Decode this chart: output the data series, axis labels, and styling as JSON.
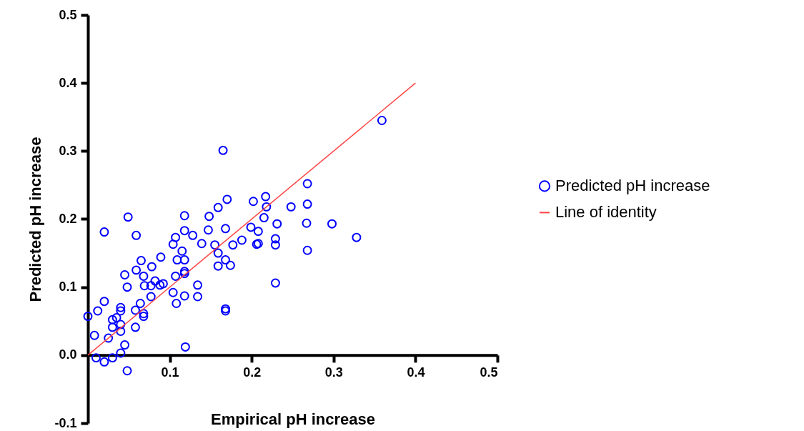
{
  "chart_data": {
    "type": "scatter",
    "xlabel": "Empirical pH increase",
    "ylabel": "Predicted pH  increase",
    "xlim": [
      0,
      0.5
    ],
    "xticks": [
      0.1,
      0.2,
      0.3,
      0.4,
      0.5
    ],
    "ylim": [
      -0.1,
      0.5
    ],
    "yticks": [
      -0.1,
      {
        "value": 0,
        "label": "0.0"
      },
      0.1,
      0.2,
      0.3,
      0.4,
      0.5
    ],
    "grid": false,
    "legend": "right",
    "marker": "circle",
    "series": [
      {
        "name": "Predicted pH increase",
        "type": "scatter",
        "color": "#0000ff",
        "x": [
          0,
          0.008,
          0.01,
          0.02,
          0.012,
          0.02,
          0.02,
          0.03,
          0.025,
          0.03,
          0.03,
          0.035,
          0.04,
          0.04,
          0.04,
          0.04,
          0.04,
          0.045,
          0.045,
          0.048,
          0.048,
          0.049,
          0.058,
          0.058,
          0.059,
          0.059,
          0.064,
          0.065,
          0.068,
          0.068,
          0.068,
          0.069,
          0.077,
          0.077,
          0.078,
          0.082,
          0.088,
          0.089,
          0.092,
          0.104,
          0.104,
          0.107,
          0.107,
          0.108,
          0.109,
          0.115,
          0.118,
          0.118,
          0.118,
          0.118,
          0.118,
          0.119,
          0.118,
          0.128,
          0.134,
          0.134,
          0.139,
          0.147,
          0.148,
          0.155,
          0.159,
          0.159,
          0.165,
          0.159,
          0.168,
          0.168,
          0.168,
          0.168,
          0.17,
          0.174,
          0.177,
          0.188,
          0.199,
          0.202,
          0.206,
          0.208,
          0.208,
          0.215,
          0.217,
          0.218,
          0.231,
          0.229,
          0.229,
          0.229,
          0.248,
          0.268,
          0.268,
          0.267,
          0.268,
          0.298,
          0.328,
          0.359
        ],
        "values": [
          0.057,
          0.029,
          -0.004,
          -0.01,
          0.065,
          0.079,
          0.181,
          -0.004,
          0.025,
          0.041,
          0.052,
          0.055,
          0.035,
          0.045,
          0.07,
          0.065,
          0.003,
          0.015,
          0.118,
          0.1,
          -0.023,
          0.203,
          0.041,
          0.066,
          0.125,
          0.176,
          0.076,
          0.139,
          0.061,
          0.057,
          0.116,
          0.102,
          0.086,
          0.102,
          0.13,
          0.109,
          0.103,
          0.144,
          0.105,
          0.092,
          0.163,
          0.173,
          0.116,
          0.076,
          0.14,
          0.153,
          0.205,
          0.183,
          0.14,
          0.123,
          0.12,
          0.012,
          0.087,
          0.176,
          0.103,
          0.086,
          0.164,
          0.184,
          0.204,
          0.162,
          0.15,
          0.217,
          0.301,
          0.131,
          0.186,
          0.14,
          0.068,
          0.065,
          0.229,
          0.132,
          0.162,
          0.169,
          0.188,
          0.226,
          0.163,
          0.182,
          0.164,
          0.202,
          0.233,
          0.218,
          0.193,
          0.171,
          0.162,
          0.106,
          0.218,
          0.252,
          0.222,
          0.194,
          0.154,
          0.193,
          0.173,
          0.345
        ]
      },
      {
        "name": "Line of identity",
        "type": "line",
        "marker": "none",
        "color": "#ff4444",
        "line_style": "solid",
        "x": [
          0,
          0.4
        ],
        "values": [
          0,
          0.4
        ]
      }
    ]
  }
}
